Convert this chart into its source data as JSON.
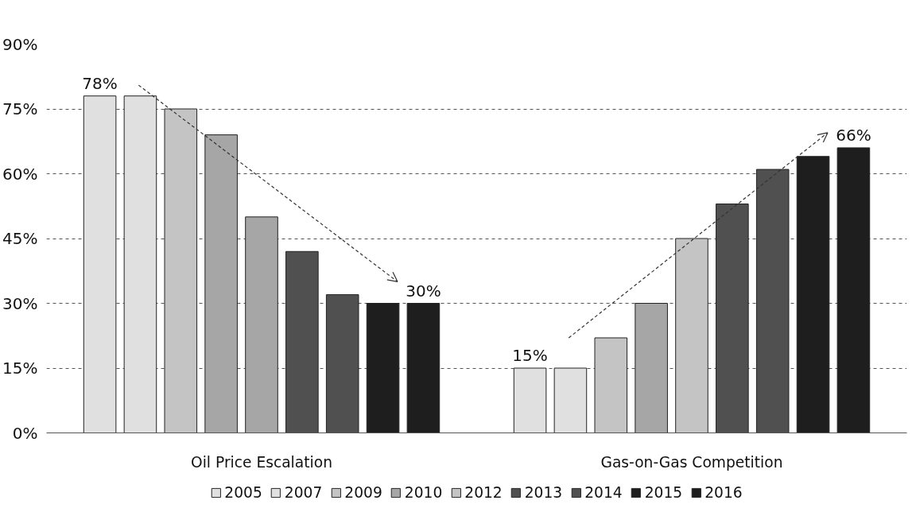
{
  "chart_data": {
    "type": "bar",
    "categories": [
      "Oil Price Escalation",
      "Gas-on-Gas Competition"
    ],
    "series": [
      {
        "name": "2005",
        "color": "#e0e0e0",
        "values": [
          78,
          15
        ],
        "value_labels": [
          "78%",
          "15%"
        ]
      },
      {
        "name": "2007",
        "color": "#e0e0e0",
        "values": [
          78,
          15
        ]
      },
      {
        "name": "2009",
        "color": "#c4c4c4",
        "values": [
          75,
          22
        ]
      },
      {
        "name": "2010",
        "color": "#a6a6a6",
        "values": [
          69,
          30
        ]
      },
      {
        "name": "2012",
        "color": "#c4c4c4",
        "colors": [
          "#a6a6a6",
          "#c4c4c4"
        ],
        "values": [
          50,
          45
        ]
      },
      {
        "name": "2013",
        "color": "#505050",
        "values": [
          42,
          53
        ]
      },
      {
        "name": "2014",
        "color": "#505050",
        "values": [
          32,
          61
        ]
      },
      {
        "name": "2015",
        "color": "#1e1e1e",
        "values": [
          30,
          64
        ]
      },
      {
        "name": "2016",
        "color": "#1e1e1e",
        "values": [
          30,
          66
        ],
        "value_labels": [
          "30%",
          "66%"
        ]
      }
    ],
    "ylim": [
      0,
      90
    ],
    "yticks": [
      {
        "value": 0,
        "label": "0%"
      },
      {
        "value": 15,
        "label": "15%"
      },
      {
        "value": 30,
        "label": "30%"
      },
      {
        "value": 45,
        "label": "45%"
      },
      {
        "value": 60,
        "label": "60%"
      },
      {
        "value": 75,
        "label": "75%"
      },
      {
        "value": 90,
        "label": "90%"
      }
    ],
    "grid": "y",
    "legend": "bottom"
  }
}
